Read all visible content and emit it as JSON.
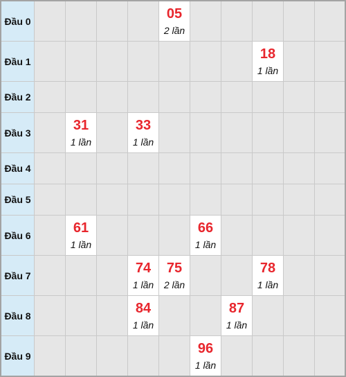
{
  "rows": [
    {
      "label": "Đầu 0",
      "hits": [
        {
          "col": 5,
          "number": "05",
          "count": "2 lần"
        }
      ]
    },
    {
      "label": "Đầu 1",
      "hits": [
        {
          "col": 8,
          "number": "18",
          "count": "1 lần"
        }
      ]
    },
    {
      "label": "Đầu 2",
      "hits": []
    },
    {
      "label": "Đầu 3",
      "hits": [
        {
          "col": 2,
          "number": "31",
          "count": "1 lần"
        },
        {
          "col": 4,
          "number": "33",
          "count": "1 lần"
        }
      ]
    },
    {
      "label": "Đầu 4",
      "hits": []
    },
    {
      "label": "Đầu 5",
      "hits": []
    },
    {
      "label": "Đầu 6",
      "hits": [
        {
          "col": 2,
          "number": "61",
          "count": "1 lần"
        },
        {
          "col": 6,
          "number": "66",
          "count": "1 lần"
        }
      ]
    },
    {
      "label": "Đầu 7",
      "hits": [
        {
          "col": 4,
          "number": "74",
          "count": "1 lần"
        },
        {
          "col": 5,
          "number": "75",
          "count": "2 lần"
        },
        {
          "col": 8,
          "number": "78",
          "count": "1 lần"
        }
      ]
    },
    {
      "label": "Đầu 8",
      "hits": [
        {
          "col": 4,
          "number": "84",
          "count": "1 lần"
        },
        {
          "col": 7,
          "number": "87",
          "count": "1 lần"
        }
      ]
    },
    {
      "label": "Đầu 9",
      "hits": [
        {
          "col": 6,
          "number": "96",
          "count": "1 lần"
        }
      ]
    }
  ],
  "colors": {
    "number": "#e8262d",
    "header_bg": "#d6ebf7",
    "empty_bg": "#e6e6e6",
    "hit_bg": "#ffffff"
  }
}
